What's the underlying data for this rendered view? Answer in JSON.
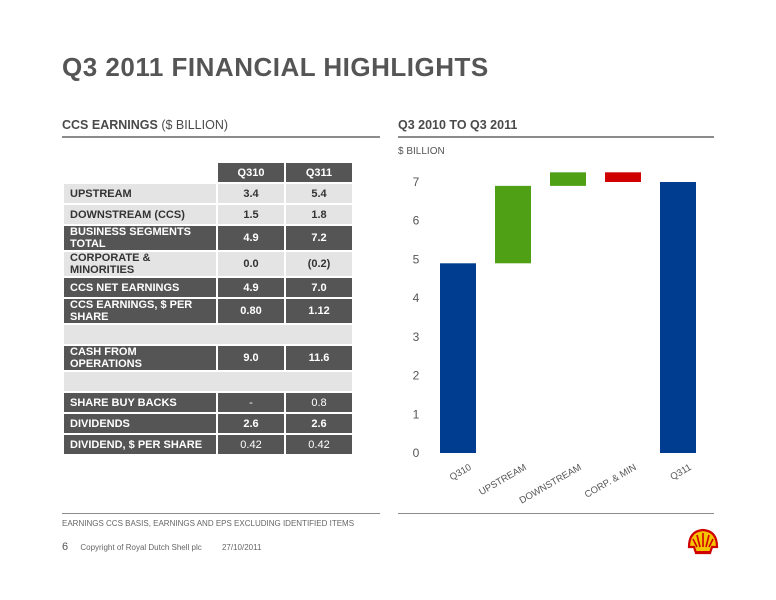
{
  "page": {
    "title": "Q3 2011 FINANCIAL HIGHLIGHTS",
    "page_number": "6",
    "copyright": "Copyright of Royal Dutch Shell plc",
    "date": "27/10/2011",
    "footnote": "EARNINGS CCS BASIS, EARNINGS AND EPS EXCLUDING IDENTIFIED ITEMS",
    "logo": "shell-pecten-logo"
  },
  "table_section": {
    "title": "CCS EARNINGS",
    "unit": "($ BILLION)",
    "columns": [
      "Q310",
      "Q311"
    ],
    "rows": [
      {
        "label": "UPSTREAM",
        "q310": "3.4",
        "q311": "5.4",
        "style": "light"
      },
      {
        "label": "DOWNSTREAM (CCS)",
        "q310": "1.5",
        "q311": "1.8",
        "style": "light"
      },
      {
        "label": "BUSINESS SEGMENTS TOTAL",
        "q310": "4.9",
        "q311": "7.2",
        "style": "dark"
      },
      {
        "label": "CORPORATE & MINORITIES",
        "q310": "0.0",
        "q311": "(0.2)",
        "style": "light"
      },
      {
        "label": "CCS NET EARNINGS",
        "q310": "4.9",
        "q311": "7.0",
        "style": "dark"
      },
      {
        "label": "CCS EARNINGS, $ PER SHARE",
        "q310": "0.80",
        "q311": "1.12",
        "style": "dark"
      },
      {
        "label": "CASH FROM OPERATIONS",
        "q310": "9.0",
        "q311": "11.6",
        "style": "dark"
      },
      {
        "label": "SHARE BUY BACKS",
        "q310": "-",
        "q311": "0.8",
        "style": "dark"
      },
      {
        "label": "DIVIDENDS",
        "q310": "2.6",
        "q311": "2.6",
        "style": "dark"
      },
      {
        "label": "DIVIDEND, $ PER SHARE",
        "q310": "0.42",
        "q311": "0.42",
        "style": "dark"
      }
    ]
  },
  "chart_section": {
    "title": "Q3 2010 TO Q3 2011",
    "unit": "$ BILLION"
  },
  "chart_data": {
    "type": "bar",
    "subtype": "waterfall",
    "title": "Q3 2010 TO Q3 2011",
    "ylabel": "$ BILLION",
    "ylim": [
      0,
      7
    ],
    "yticks": [
      0,
      1,
      2,
      3,
      4,
      5,
      6,
      7
    ],
    "grid": false,
    "categories": [
      "Q310",
      "UPSTREAM",
      "DOWNSTREAM",
      "CORP. & MIN",
      "Q311"
    ],
    "bars": [
      {
        "label": "Q310",
        "start": 0,
        "end": 4.9,
        "color": "#003c8f"
      },
      {
        "label": "UPSTREAM",
        "start": 4.9,
        "end": 6.9,
        "color": "#4fa015"
      },
      {
        "label": "DOWNSTREAM",
        "start": 6.9,
        "end": 7.25,
        "color": "#4fa015"
      },
      {
        "label": "CORP. & MIN",
        "start": 7.25,
        "end": 7.0,
        "color": "#d10000"
      },
      {
        "label": "Q311",
        "start": 0,
        "end": 7.0,
        "color": "#003c8f"
      }
    ]
  }
}
